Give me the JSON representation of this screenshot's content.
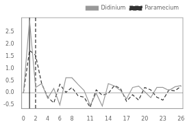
{
  "chart_data": {
    "type": "line",
    "x": [
      0,
      1,
      2,
      3,
      4,
      5,
      6,
      7,
      8,
      9,
      10,
      11,
      12,
      13,
      14,
      15,
      16,
      17,
      18,
      19,
      20,
      21,
      22,
      23,
      24,
      25,
      26
    ],
    "series": [
      {
        "name": "Didinium",
        "color": "#999999",
        "line_style": "solid",
        "values": [
          0.0,
          3.0,
          0.22,
          0.38,
          -0.22,
          0.18,
          -0.5,
          0.62,
          0.62,
          0.35,
          0.1,
          -0.52,
          -0.02,
          -0.55,
          0.38,
          0.28,
          0.1,
          -0.25,
          0.22,
          0.28,
          0.05,
          -0.2,
          0.22,
          0.22,
          0.1,
          0.25,
          0.3
        ]
      },
      {
        "name": "Paramecium",
        "color": "#333333",
        "line_style": "dashed",
        "values": [
          0.0,
          1.75,
          1.55,
          0.38,
          -0.18,
          -0.42,
          0.35,
          0.02,
          0.22,
          -0.12,
          -0.18,
          -0.6,
          0.12,
          -0.1,
          -0.02,
          0.3,
          0.18,
          -0.35,
          -0.08,
          -0.3,
          0.22,
          0.12,
          -0.18,
          -0.3,
          0.12,
          0.08,
          0.28
        ]
      }
    ],
    "xlim": [
      -0.3,
      26.3
    ],
    "xticks": [
      0,
      2,
      4,
      6,
      8,
      11,
      14,
      17,
      20,
      23,
      26
    ],
    "ylim": [
      -0.65,
      3.1
    ],
    "yticks": [
      -0.5,
      {
        "value": 0,
        "label": "0.0"
      },
      0.5,
      {
        "value": 1,
        "label": "1.0"
      },
      1.5,
      {
        "value": 2,
        "label": "2.0"
      },
      2.5
    ],
    "hlines": [
      {
        "value": 0,
        "color": "#aaaaaa",
        "line_style": "solid"
      }
    ],
    "vlines": [
      {
        "value": 1,
        "color": "#000000",
        "line_style": "solid"
      },
      {
        "value": 2,
        "color": "#000000",
        "line_style": "dashed"
      }
    ],
    "grid": false,
    "legend": "upper right"
  }
}
